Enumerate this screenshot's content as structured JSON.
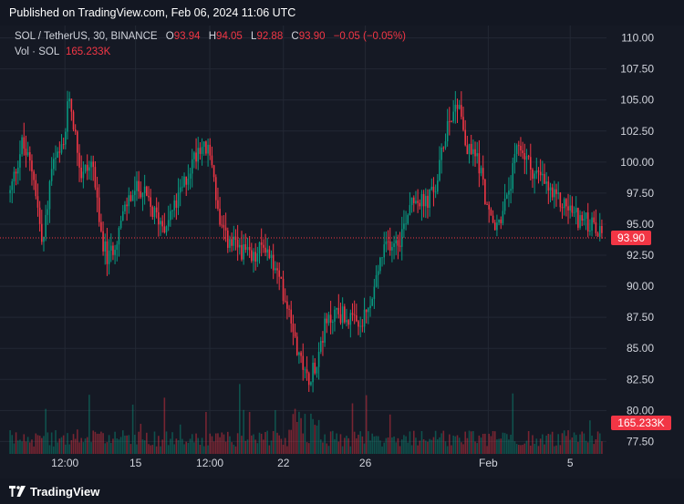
{
  "banner": "Published on TradingView.com, Feb 06, 2024 11:06 UTC",
  "legend": {
    "symbol": "SOL / TetherUS, 30, BINANCE",
    "o_label": "O",
    "o_value": "93.94",
    "h_label": "H",
    "h_value": "94.05",
    "l_label": "L",
    "l_value": "92.88",
    "c_label": "C",
    "c_value": "93.90",
    "change": "−0.05 (−0.05%)"
  },
  "vol_legend": {
    "label": "Vol · SOL",
    "value": "165.233K"
  },
  "footer": {
    "brand": "TradingView"
  },
  "colors": {
    "up": "#089981",
    "down": "#f23645",
    "background": "#151924",
    "grid": "#232834"
  },
  "chart_data": {
    "type": "candlestick",
    "symbol": "SOL / TetherUS",
    "interval": "30",
    "exchange": "BINANCE",
    "y_axis": {
      "ticks": [
        "110.00",
        "107.50",
        "105.00",
        "102.50",
        "100.00",
        "97.50",
        "95.00",
        "92.50",
        "90.00",
        "87.50",
        "85.00",
        "82.50",
        "80.00",
        "77.50"
      ],
      "range": [
        76.5,
        111.0
      ]
    },
    "x_axis": {
      "ticks": [
        {
          "label": "12:00",
          "t": 0.094
        },
        {
          "label": "15",
          "t": 0.213
        },
        {
          "label": "12:00",
          "t": 0.338
        },
        {
          "label": "22",
          "t": 0.462
        },
        {
          "label": "26",
          "t": 0.6
        },
        {
          "label": "Feb",
          "t": 0.807
        },
        {
          "label": "5",
          "t": 0.945
        }
      ]
    },
    "price_path": [
      [
        0.0,
        97.5
      ],
      [
        0.02,
        101.5
      ],
      [
        0.04,
        99.0
      ],
      [
        0.055,
        93.0
      ],
      [
        0.07,
        99.5
      ],
      [
        0.09,
        101.0
      ],
      [
        0.1,
        105.5
      ],
      [
        0.12,
        99.0
      ],
      [
        0.14,
        100.0
      ],
      [
        0.15,
        95.0
      ],
      [
        0.165,
        92.0
      ],
      [
        0.18,
        94.0
      ],
      [
        0.2,
        97.0
      ],
      [
        0.22,
        98.0
      ],
      [
        0.24,
        96.0
      ],
      [
        0.26,
        95.0
      ],
      [
        0.28,
        96.5
      ],
      [
        0.3,
        99.0
      ],
      [
        0.32,
        101.5
      ],
      [
        0.34,
        100.5
      ],
      [
        0.355,
        94.5
      ],
      [
        0.37,
        93.5
      ],
      [
        0.39,
        93.0
      ],
      [
        0.41,
        92.0
      ],
      [
        0.43,
        93.5
      ],
      [
        0.45,
        91.0
      ],
      [
        0.47,
        88.5
      ],
      [
        0.49,
        84.0
      ],
      [
        0.5,
        82.5
      ],
      [
        0.515,
        83.5
      ],
      [
        0.53,
        86.5
      ],
      [
        0.55,
        88.0
      ],
      [
        0.57,
        87.5
      ],
      [
        0.59,
        86.5
      ],
      [
        0.61,
        88.5
      ],
      [
        0.625,
        92.0
      ],
      [
        0.64,
        93.5
      ],
      [
        0.66,
        94.0
      ],
      [
        0.68,
        97.5
      ],
      [
        0.7,
        96.5
      ],
      [
        0.72,
        98.0
      ],
      [
        0.74,
        103.5
      ],
      [
        0.76,
        105.0
      ],
      [
        0.77,
        101.0
      ],
      [
        0.79,
        100.5
      ],
      [
        0.81,
        95.5
      ],
      [
        0.82,
        94.5
      ],
      [
        0.84,
        97.0
      ],
      [
        0.86,
        101.5
      ],
      [
        0.88,
        99.5
      ],
      [
        0.9,
        98.5
      ],
      [
        0.92,
        97.0
      ],
      [
        0.94,
        96.5
      ],
      [
        0.96,
        95.5
      ],
      [
        0.98,
        95.0
      ],
      [
        1.0,
        93.9
      ]
    ],
    "last_price": 93.9,
    "last_volume": "165.233K"
  }
}
